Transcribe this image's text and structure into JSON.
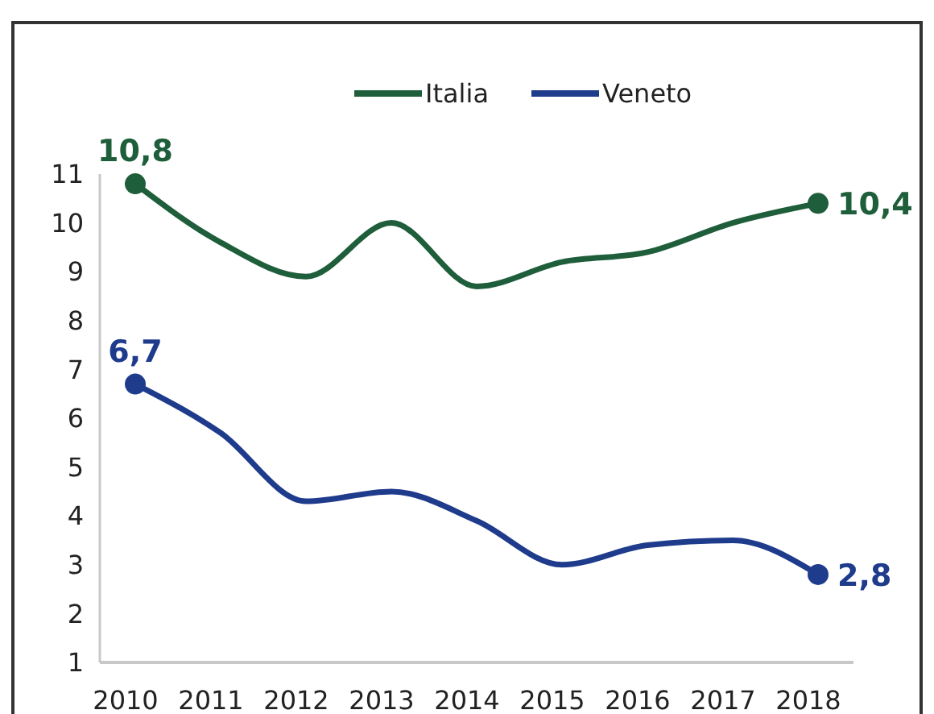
{
  "chart_data": {
    "type": "line",
    "categories": [
      "2010",
      "2011",
      "2012",
      "2013",
      "2014",
      "2015",
      "2016",
      "2017",
      "2018"
    ],
    "series": [
      {
        "name": "Italia",
        "color": "#1f5e3b",
        "values": [
          10.8,
          9.6,
          8.9,
          10.0,
          8.7,
          9.2,
          9.4,
          10.0,
          10.4
        ],
        "value_labels": [
          "10,8",
          null,
          null,
          null,
          null,
          null,
          null,
          null,
          "10,4"
        ]
      },
      {
        "name": "Veneto",
        "color": "#1f3b8c",
        "values": [
          6.7,
          5.7,
          4.3,
          4.5,
          3.9,
          3.0,
          3.4,
          3.5,
          2.8
        ],
        "value_labels": [
          "6,7",
          null,
          null,
          null,
          null,
          null,
          null,
          null,
          "2,8"
        ]
      }
    ],
    "ylim": [
      1,
      11
    ],
    "yticks": [
      1,
      2,
      3,
      4,
      5,
      6,
      7,
      8,
      9,
      10,
      11
    ],
    "grid": false,
    "legend": "top",
    "line_style": "solid"
  }
}
